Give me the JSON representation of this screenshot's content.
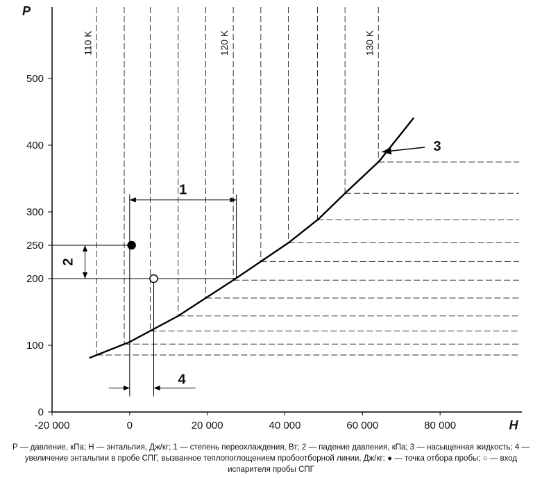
{
  "chart_data": {
    "type": "line",
    "x_label": "H",
    "y_label": "P",
    "xlim": [
      -20000,
      100000
    ],
    "ylim": [
      0,
      600
    ],
    "xticks": [
      {
        "value": -20000,
        "label": "-20 000"
      },
      0,
      {
        "value": 20000,
        "label": "20 000"
      },
      {
        "value": 40000,
        "label": "40 000"
      },
      {
        "value": 60000,
        "label": "60 000"
      },
      {
        "value": 80000,
        "label": "80 000"
      }
    ],
    "yticks": [
      0,
      100,
      200,
      250,
      300,
      400,
      500
    ],
    "color": "#000000",
    "x": [
      -10400,
      0,
      12500,
      26800,
      41000,
      48600,
      55700,
      64300,
      73200
    ],
    "values": [
      81,
      105,
      144,
      198,
      254,
      289,
      329,
      376,
      441
    ],
    "isotherms": [
      {
        "x": -8500,
        "label": "110 K"
      },
      {
        "x": -1400
      },
      {
        "x": 5300
      },
      {
        "x": 12500
      },
      {
        "x": 19600
      },
      {
        "x": 26700,
        "label": "120 K"
      },
      {
        "x": 33800
      },
      {
        "x": 40900
      },
      {
        "x": 48400
      },
      {
        "x": 55500
      },
      {
        "x": 64100,
        "label": "130 K"
      }
    ],
    "points": [
      {
        "x": 500,
        "y": 250,
        "filled": true
      },
      {
        "x": 6200,
        "y": 200,
        "filled": false
      }
    ],
    "annotations": [
      {
        "text": "1",
        "x": [
          0,
          27500
        ],
        "y": 318
      },
      {
        "text": "2",
        "x": -11500,
        "y": [
          200,
          250
        ]
      },
      {
        "text": "3",
        "x": 65000,
        "y": 390
      },
      {
        "text": "4",
        "x": [
          0,
          6200
        ],
        "y": 36
      }
    ],
    "caption": "Р — давление, кПа; Н — энтальпия, Дж/кг; 1 — степень переохлаждения, Вт; 2 — падение давления, кПа; 3 — насыщенная жидкость; 4 — увеличение энтальпии в пробе СПГ, вызванное теплопоглощением пробоотборной линии, Дж/кг; ● — точка отбора пробы; ○ — вход испарителя пробы СПГ"
  }
}
